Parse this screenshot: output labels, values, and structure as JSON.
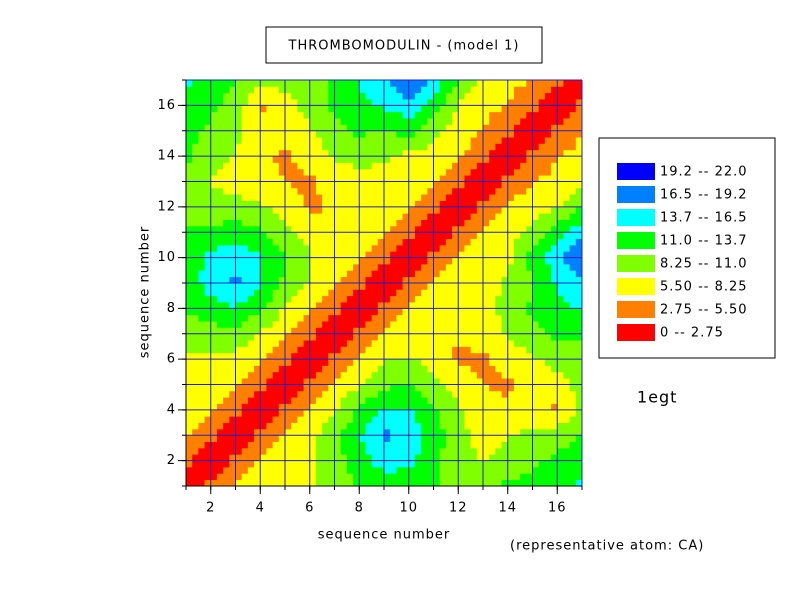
{
  "chart_data": {
    "type": "contour",
    "title": "THROMBOMODULIN -  (model 1)",
    "x_label": "sequence number",
    "y_label": "sequence number",
    "annotations": [
      "1egt",
      "(representative atom: CA)"
    ],
    "x": [
      1,
      2,
      3,
      4,
      5,
      6,
      7,
      8,
      9,
      10,
      11,
      12,
      13,
      14,
      15,
      16,
      17
    ],
    "y": [
      1,
      2,
      3,
      4,
      5,
      6,
      7,
      8,
      9,
      10,
      11,
      12,
      13,
      14,
      15,
      16,
      17
    ],
    "z": [
      [
        0,
        3.8,
        6,
        6.5,
        7,
        8,
        9,
        11.5,
        12,
        12,
        11.5,
        8.5,
        10,
        11.5,
        12,
        12.5,
        14.5
      ],
      [
        3.8,
        0,
        3.8,
        6,
        7,
        8,
        10,
        12.5,
        15,
        14.5,
        12,
        9,
        8,
        9,
        10.5,
        11.5,
        12.5
      ],
      [
        6,
        3.8,
        0,
        3.8,
        6,
        7.5,
        10,
        13.5,
        17,
        16,
        12.5,
        9,
        7.5,
        8,
        9,
        10,
        11
      ],
      [
        6.5,
        6,
        3.8,
        0,
        3.8,
        6,
        8,
        11.5,
        14,
        14,
        11.5,
        8.5,
        6.5,
        6,
        6.5,
        5,
        9
      ],
      [
        7,
        7,
        6,
        3.8,
        0,
        3.8,
        6,
        8,
        10.5,
        11,
        9,
        7,
        5.5,
        5,
        6.5,
        7.5,
        9
      ],
      [
        8,
        8,
        7.5,
        6,
        3.8,
        0,
        3.8,
        6,
        8,
        8.5,
        7.5,
        5,
        5,
        6.5,
        8,
        9,
        9.5
      ],
      [
        9,
        10,
        10,
        8,
        6,
        3.8,
        0,
        3.8,
        6,
        6.5,
        5.3,
        5.8,
        7,
        8.5,
        10,
        11.5,
        12
      ],
      [
        11.5,
        12.5,
        13.5,
        11.5,
        8,
        6,
        3.8,
        0,
        3.8,
        6,
        6.5,
        6.5,
        7.5,
        9,
        11.5,
        13,
        14
      ],
      [
        12,
        15,
        17,
        14,
        10.5,
        8,
        6,
        3.8,
        0,
        3.8,
        6,
        7,
        7.5,
        8.5,
        11,
        14,
        16
      ],
      [
        12,
        14.5,
        16,
        14,
        11,
        8.5,
        6.5,
        6,
        3.8,
        0,
        3.8,
        6,
        7,
        7.5,
        12,
        15.5,
        20
      ],
      [
        11.5,
        12,
        12.5,
        11.5,
        9,
        7.5,
        5.3,
        6.5,
        6,
        3.8,
        0,
        3.8,
        6,
        7,
        9,
        13,
        16
      ],
      [
        8.5,
        9,
        9,
        8.5,
        7,
        5,
        5.8,
        6.5,
        7,
        6,
        3.8,
        0,
        3.8,
        6,
        6.5,
        8,
        11
      ],
      [
        10,
        8,
        7.5,
        6.5,
        5.5,
        5,
        7,
        7.5,
        7.5,
        7,
        6,
        3.8,
        0,
        3.8,
        5.5,
        6,
        7.5
      ],
      [
        11.5,
        9,
        8,
        6,
        5,
        6.5,
        8.5,
        9,
        8.5,
        7.5,
        7,
        6,
        3.8,
        0,
        3.8,
        5.5,
        6
      ],
      [
        12,
        10.5,
        9,
        6.5,
        6.5,
        8,
        10,
        11.5,
        11,
        12,
        9,
        6.5,
        5.5,
        3.8,
        0,
        3.8,
        5.5
      ],
      [
        12.5,
        11.5,
        10,
        5,
        7.5,
        9,
        11.5,
        13,
        14,
        15.5,
        13,
        8,
        6,
        5.5,
        3.8,
        0,
        3.8
      ],
      [
        14.5,
        12.5,
        11,
        9,
        9,
        9.5,
        12,
        14,
        16,
        20,
        16,
        11,
        7.5,
        6,
        5.5,
        3.8,
        0
      ]
    ],
    "levels": [
      0,
      2.75,
      5.5,
      8.25,
      11,
      13.75,
      16.5,
      19.25,
      22
    ],
    "colors": [
      "#ff0000",
      "#ff8000",
      "#ffff00",
      "#80ff00",
      "#00ff00",
      "#00ffff",
      "#0080ff",
      "#0000ff"
    ],
    "legend": [
      "0  -- 2.75",
      "2.75  --  5.50",
      "5.50  --  8.25",
      "8.25  --  11.0",
      "11.0  --  13.7",
      "13.7  --  16.5",
      "16.5  --  19.2",
      "19.2  --  22.0"
    ],
    "xlim": [
      1,
      17
    ],
    "ylim": [
      1,
      17
    ],
    "xticks": [
      2,
      4,
      6,
      8,
      10,
      12,
      14,
      16
    ],
    "yticks": [
      2,
      4,
      6,
      8,
      10,
      12,
      14,
      16
    ],
    "xminorticks": [
      1,
      2,
      3,
      4,
      5,
      6,
      7,
      8,
      9,
      10,
      11,
      12,
      13,
      14,
      15,
      16,
      17
    ],
    "yminorticks": [
      1,
      2,
      3,
      4,
      5,
      6,
      7,
      8,
      9,
      10,
      11,
      12,
      13,
      14,
      15,
      16,
      17
    ],
    "grid": true,
    "grid_color": "#2020c0"
  }
}
